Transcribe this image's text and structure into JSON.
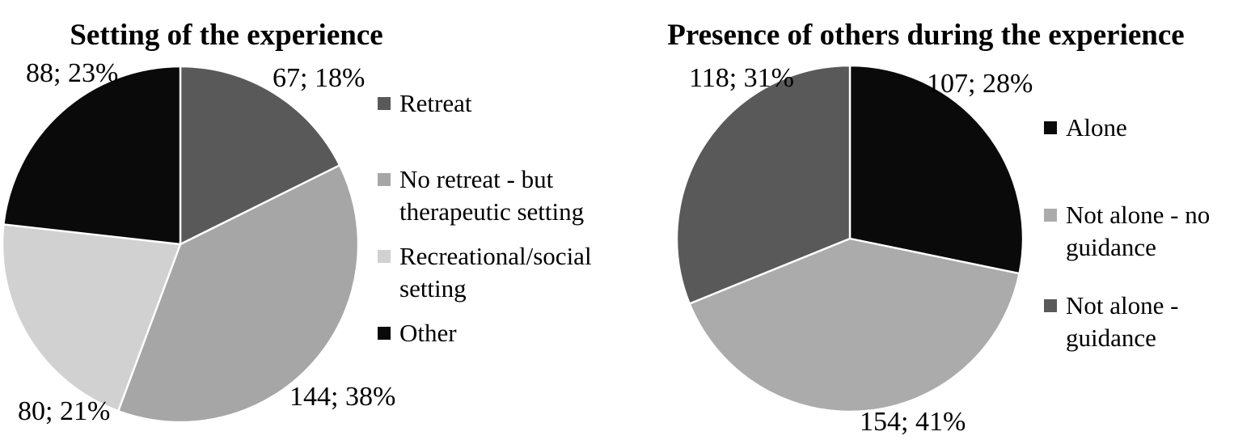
{
  "figure": {
    "background": "#FFFFFF",
    "text_color": "#000000",
    "separator_color": "#FFFFFF"
  },
  "chart_data": [
    {
      "type": "pie",
      "title": "Setting of the experience",
      "legend_position": "right",
      "start_angle_deg": 0,
      "direction": "clockwise",
      "data_label_format": "count; percent",
      "segments": [
        {
          "label": "Retreat",
          "value": 67,
          "percent": 18,
          "color": "#595959",
          "data_label": "67; 18%"
        },
        {
          "label": "No retreat - but therapeutic setting",
          "value": 144,
          "percent": 38,
          "color": "#A6A6A6",
          "data_label": "144; 38%"
        },
        {
          "label": "Recreational/social setting",
          "value": 80,
          "percent": 21,
          "color": "#D1D1D1",
          "data_label": "80; 21%"
        },
        {
          "label": "Other",
          "value": 88,
          "percent": 23,
          "color": "#0A0A0A",
          "data_label": "88; 23%"
        }
      ],
      "legend_labels": [
        "Retreat",
        "No retreat - but\ntherapeutic setting",
        "Recreational/social\nsetting",
        "Other"
      ]
    },
    {
      "type": "pie",
      "title": "Presence of others during the experience",
      "legend_position": "right",
      "start_angle_deg": 0,
      "direction": "clockwise",
      "data_label_format": "count; percent",
      "segments": [
        {
          "label": "Alone",
          "value": 107,
          "percent": 28,
          "color": "#0A0A0A",
          "data_label": "107; 28%"
        },
        {
          "label": "Not alone - no guidance",
          "value": 154,
          "percent": 41,
          "color": "#ABABAB",
          "data_label": "154; 41%"
        },
        {
          "label": "Not alone - guidance",
          "value": 118,
          "percent": 31,
          "color": "#595959",
          "data_label": "118; 31%"
        }
      ],
      "legend_labels": [
        "Alone",
        "Not alone - no\nguidance",
        "Not alone -\nguidance"
      ]
    }
  ]
}
